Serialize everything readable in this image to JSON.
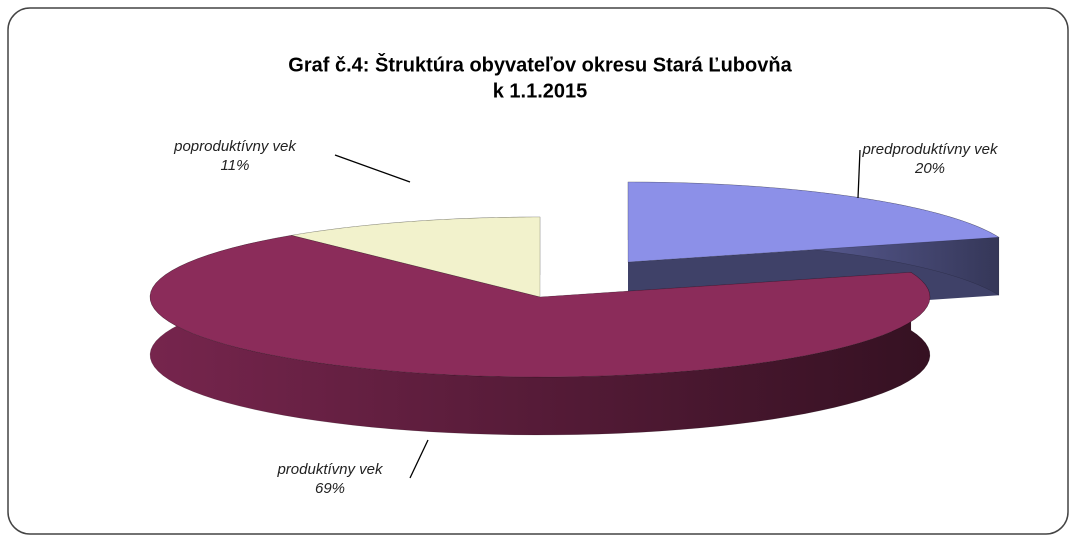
{
  "chart_data": {
    "type": "pie3d",
    "title": [
      "Graf č.4: Štruktúra obyvateľov okresu Stará Ľubovňa",
      "k 1.1.2015"
    ],
    "categories": [
      "predproduktívny vek",
      "produktívny vek",
      "poproduktívny vek"
    ],
    "values": [
      20,
      69,
      11
    ],
    "value_labels": [
      "20%",
      "69%",
      "11%"
    ],
    "colors": [
      "#8c90e8",
      "#8b2c5a",
      "#f2f2cc"
    ]
  }
}
